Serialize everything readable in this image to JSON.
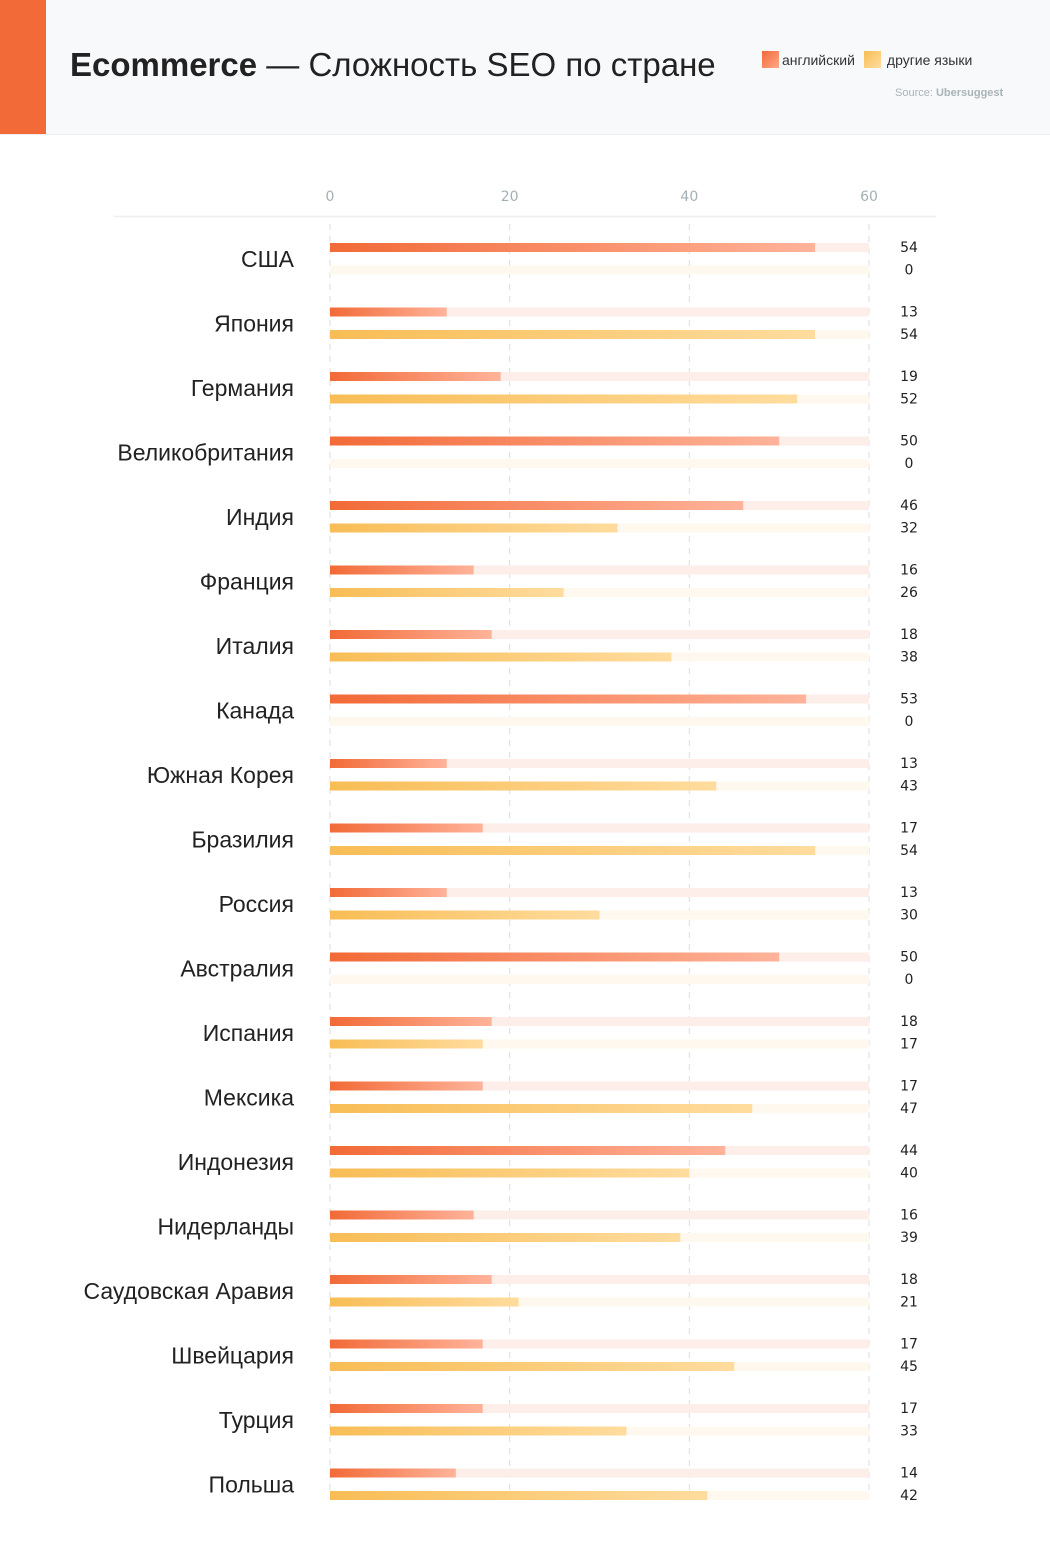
{
  "header": {
    "title_bold": "Ecommerce",
    "title_rest": " — Сложность SEO по стране",
    "source_label": "Source: ",
    "source_name": "Ubersuggest"
  },
  "colors": {
    "english": "#f26a37",
    "english_light": "#ffb39a",
    "other": "#f8bd55",
    "other_light": "#ffdc9e",
    "english_track": "#fdeeea",
    "other_track": "#fef8ee",
    "accent": "#f26a37"
  },
  "chart_data": {
    "type": "bar",
    "title": "Ecommerce — Сложность SEO по стране",
    "xlim": [
      0,
      60
    ],
    "xticks": [
      0,
      20,
      40,
      60
    ],
    "grid": true,
    "legend_position": "top-right",
    "categories": [
      "США",
      "Япония",
      "Германия",
      "Великобритания",
      "Индия",
      "Франция",
      "Италия",
      "Канада",
      "Южная Корея",
      "Бразилия",
      "Россия",
      "Австралия",
      "Испания",
      "Мексика",
      "Индонезия",
      "Нидерланды",
      "Саудовская Аравия",
      "Швейцария",
      "Турция",
      "Польша"
    ],
    "series": [
      {
        "name": "английский",
        "values": [
          54,
          13,
          19,
          50,
          46,
          16,
          18,
          53,
          13,
          17,
          13,
          50,
          18,
          17,
          44,
          16,
          18,
          17,
          17,
          14
        ]
      },
      {
        "name": "другие языки",
        "values": [
          0,
          54,
          52,
          0,
          32,
          26,
          38,
          0,
          43,
          54,
          30,
          0,
          17,
          47,
          40,
          39,
          21,
          45,
          33,
          42
        ]
      }
    ]
  }
}
